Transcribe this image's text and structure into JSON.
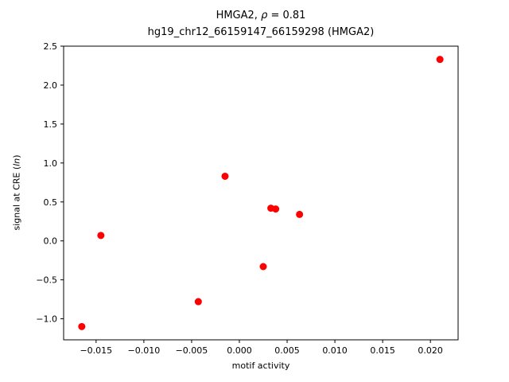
{
  "chart_data": {
    "type": "scatter",
    "title": {
      "line1_prefix": "HMGA2, ",
      "line1_rho": "ρ",
      "line1_suffix": " = 0.81",
      "line2": "hg19_chr12_66159147_66159298 (HMGA2)"
    },
    "xlabel": "motif activity",
    "ylabel_prefix": "signal at CRE (",
    "ylabel_italic": "ln",
    "ylabel_suffix": ")",
    "marker_color": "#ff0000",
    "axis_color": "#000000",
    "grid": false,
    "legend": false,
    "xlim": [
      -0.0184,
      0.0229
    ],
    "ylim": [
      -1.27,
      2.5
    ],
    "xticks": [
      -0.015,
      -0.01,
      -0.005,
      0.0,
      0.005,
      0.01,
      0.015,
      0.02
    ],
    "xtick_labels": [
      "−0.015",
      "−0.010",
      "−0.005",
      "0.000",
      "0.005",
      "0.010",
      "0.015",
      "0.020"
    ],
    "yticks": [
      -1.0,
      -0.5,
      0.0,
      0.5,
      1.0,
      1.5,
      2.0,
      2.5
    ],
    "ytick_labels": [
      "−1.0",
      "−0.5",
      "0.0",
      "0.5",
      "1.0",
      "1.5",
      "2.0",
      "2.5"
    ],
    "points": [
      {
        "x": -0.0165,
        "y": -1.1
      },
      {
        "x": -0.0145,
        "y": 0.07
      },
      {
        "x": -0.0043,
        "y": -0.78
      },
      {
        "x": -0.0015,
        "y": 0.83
      },
      {
        "x": 0.0025,
        "y": -0.33
      },
      {
        "x": 0.0033,
        "y": 0.42
      },
      {
        "x": 0.0038,
        "y": 0.41
      },
      {
        "x": 0.0063,
        "y": 0.34
      },
      {
        "x": 0.021,
        "y": 2.33
      }
    ]
  }
}
